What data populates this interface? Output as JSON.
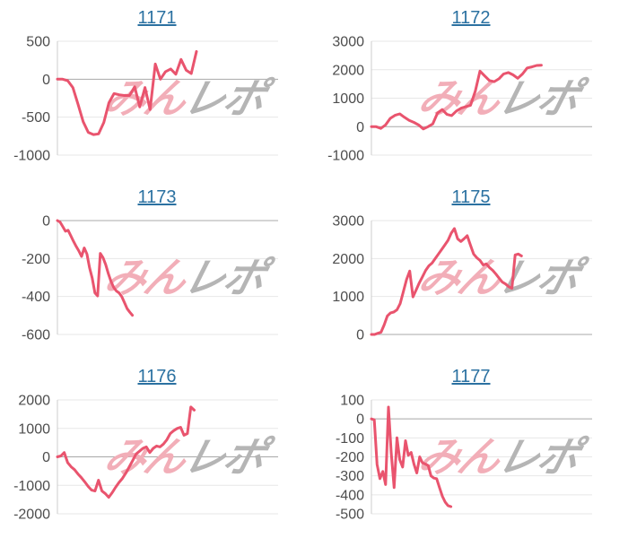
{
  "page": {
    "background": "#ffffff"
  },
  "colors": {
    "line": "#e9546e",
    "grid": "#e7e7e7",
    "zero_line": "#a8a8a8",
    "axis_line": "#cccccc",
    "tick_label": "#4d4d4d",
    "link": "#2b71a1",
    "watermark_pink": "#f2aeb8",
    "watermark_gray": "#b5b5b5"
  },
  "watermark": {
    "pink_text": "みん",
    "gray_text": "レポ"
  },
  "chart_data": [
    {
      "type": "line",
      "title": "1171",
      "yticks": [
        500,
        0,
        -500,
        -1000
      ],
      "ylim": [
        -1000,
        500
      ],
      "grid": true,
      "legend": "none",
      "end_fraction": 0.63,
      "values": [
        0,
        0,
        -20,
        -110,
        -330,
        -560,
        -700,
        -730,
        -720,
        -570,
        -310,
        -190,
        -205,
        -215,
        -215,
        -100,
        -365,
        -110,
        -400,
        200,
        0,
        100,
        135,
        65,
        260,
        120,
        75,
        365
      ]
    },
    {
      "type": "line",
      "title": "1172",
      "yticks": [
        3000,
        2000,
        1000,
        0,
        -1000
      ],
      "ylim": [
        -1000,
        3000
      ],
      "grid": true,
      "legend": "none",
      "end_fraction": 0.77,
      "values": [
        0,
        0,
        -60,
        60,
        290,
        400,
        450,
        330,
        220,
        150,
        60,
        -80,
        0,
        100,
        480,
        600,
        430,
        390,
        550,
        650,
        700,
        750,
        1250,
        1950,
        1780,
        1620,
        1580,
        1680,
        1850,
        1900,
        1820,
        1700,
        1850,
        2060,
        2100,
        2150,
        2160
      ]
    },
    {
      "type": "line",
      "title": "1173",
      "yticks": [
        0,
        -200,
        -400,
        -600
      ],
      "ylim": [
        -600,
        0
      ],
      "grid": true,
      "legend": "none",
      "end_fraction": 0.34,
      "values": [
        0,
        -8,
        -32,
        -56,
        -51,
        -80,
        -109,
        -136,
        -160,
        -189,
        -144,
        -176,
        -248,
        -304,
        -381,
        -397,
        -173,
        -195,
        -232,
        -280,
        -320,
        -352,
        -371,
        -381,
        -400,
        -432,
        -464,
        -483,
        -499
      ]
    },
    {
      "type": "line",
      "title": "1175",
      "yticks": [
        3000,
        2000,
        1000,
        0
      ],
      "ylim": [
        0,
        3000
      ],
      "grid": true,
      "legend": "none",
      "end_fraction": 0.68,
      "values": [
        0,
        0,
        30,
        60,
        250,
        490,
        570,
        590,
        650,
        810,
        1130,
        1450,
        1670,
        990,
        1170,
        1360,
        1520,
        1690,
        1810,
        1880,
        2000,
        2120,
        2240,
        2360,
        2480,
        2670,
        2790,
        2520,
        2450,
        2520,
        2600,
        2360,
        2120,
        2020,
        1950,
        1830,
        1860,
        1760,
        1690,
        1590,
        1480,
        1380,
        1330,
        1260,
        1215,
        2095,
        2120,
        2070
      ]
    },
    {
      "type": "line",
      "title": "1176",
      "yticks": [
        2000,
        1000,
        0,
        -1000,
        -2000
      ],
      "ylim": [
        -2000,
        2000
      ],
      "grid": true,
      "legend": "none",
      "end_fraction": 0.62,
      "values": [
        0,
        30,
        150,
        -200,
        -350,
        -450,
        -600,
        -730,
        -880,
        -1040,
        -1170,
        -1200,
        -820,
        -1200,
        -1290,
        -1420,
        -1260,
        -1070,
        -900,
        -760,
        -570,
        -350,
        -130,
        100,
        200,
        300,
        350,
        150,
        300,
        380,
        350,
        450,
        600,
        820,
        920,
        1000,
        1040,
        760,
        820,
        1750,
        1640
      ]
    },
    {
      "type": "line",
      "title": "1177",
      "yticks": [
        100,
        0,
        -100,
        -200,
        -300,
        -400,
        -500
      ],
      "ylim": [
        -500,
        100
      ],
      "grid": true,
      "legend": "none",
      "end_fraction": 0.36,
      "values": [
        0,
        -5,
        -240,
        -315,
        -277,
        -346,
        62,
        -180,
        -362,
        -100,
        -215,
        -254,
        -115,
        -192,
        -177,
        -238,
        -285,
        -200,
        -231,
        -238,
        -246,
        -300,
        -312,
        -315,
        -362,
        -408,
        -438,
        -457,
        -462
      ]
    }
  ]
}
